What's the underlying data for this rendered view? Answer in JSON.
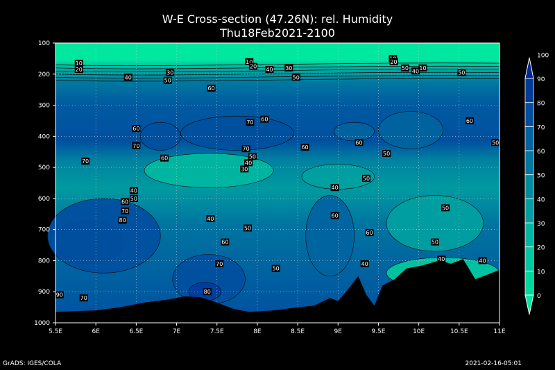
{
  "title_line1": "W-E Cross-section (47.26N): rel. Humidity",
  "title_line2": "Thu18Feb2021-2100",
  "footer_left": "GrADS: IGES/COLA",
  "footer_right": "2021-02-16-05:01",
  "chart_data": {
    "type": "heatmap",
    "title": "W-E Cross-section (47.26N): rel. Humidity",
    "subtitle": "Thu18Feb2021-2100",
    "x_ticks": [
      "5.5E",
      "6E",
      "6.5E",
      "7E",
      "7.5E",
      "8E",
      "8.5E",
      "9E",
      "9.5E",
      "10E",
      "10.5E",
      "11E"
    ],
    "x_values": [
      5.5,
      6,
      6.5,
      7,
      7.5,
      8,
      8.5,
      9,
      9.5,
      10,
      10.5,
      11
    ],
    "y_ticks": [
      "100",
      "200",
      "300",
      "400",
      "500",
      "600",
      "700",
      "800",
      "900",
      "1000"
    ],
    "y_values": [
      100,
      200,
      300,
      400,
      500,
      600,
      700,
      800,
      900,
      1000
    ],
    "xlim": [
      5.5,
      11
    ],
    "ylim": [
      1000,
      100
    ],
    "colorbar": {
      "levels": [
        0,
        10,
        20,
        30,
        40,
        50,
        60,
        70,
        80,
        90,
        100
      ],
      "labels": [
        "0",
        "10",
        "20",
        "30",
        "40",
        "50",
        "60",
        "70",
        "80",
        "90",
        "100"
      ],
      "colors": [
        "#00e8a0",
        "#00d8a0",
        "#00c8a0",
        "#00b8a0",
        "#00a0a0",
        "#008ca0",
        "#0078a0",
        "#0064a0",
        "#0050a0",
        "#003c9c",
        "#002890"
      ]
    },
    "contour_labels": [
      {
        "lon": 5.79,
        "p": 165,
        "v": "10"
      },
      {
        "lon": 5.79,
        "p": 185,
        "v": "20"
      },
      {
        "lon": 6.4,
        "p": 210,
        "v": "40"
      },
      {
        "lon": 6.92,
        "p": 195,
        "v": "30"
      },
      {
        "lon": 6.89,
        "p": 220,
        "v": "50"
      },
      {
        "lon": 7.43,
        "p": 245,
        "v": "60"
      },
      {
        "lon": 7.9,
        "p": 160,
        "v": "10"
      },
      {
        "lon": 7.95,
        "p": 175,
        "v": "20"
      },
      {
        "lon": 8.15,
        "p": 185,
        "v": "40"
      },
      {
        "lon": 8.39,
        "p": 180,
        "v": "30"
      },
      {
        "lon": 8.48,
        "p": 210,
        "v": "50"
      },
      {
        "lon": 9.68,
        "p": 150,
        "v": "10"
      },
      {
        "lon": 9.69,
        "p": 160,
        "v": "20"
      },
      {
        "lon": 9.83,
        "p": 180,
        "v": "50"
      },
      {
        "lon": 9.96,
        "p": 190,
        "v": "40"
      },
      {
        "lon": 10.05,
        "p": 180,
        "v": "10"
      },
      {
        "lon": 10.53,
        "p": 195,
        "v": "50"
      },
      {
        "lon": 6.5,
        "p": 375,
        "v": "60"
      },
      {
        "lon": 7.91,
        "p": 355,
        "v": "70"
      },
      {
        "lon": 8.09,
        "p": 345,
        "v": "60"
      },
      {
        "lon": 6.5,
        "p": 430,
        "v": "70"
      },
      {
        "lon": 6.85,
        "p": 470,
        "v": "60"
      },
      {
        "lon": 5.87,
        "p": 480,
        "v": "70"
      },
      {
        "lon": 7.86,
        "p": 440,
        "v": "70"
      },
      {
        "lon": 7.94,
        "p": 465,
        "v": "50"
      },
      {
        "lon": 7.89,
        "p": 485,
        "v": "40"
      },
      {
        "lon": 7.84,
        "p": 505,
        "v": "30"
      },
      {
        "lon": 8.59,
        "p": 435,
        "v": "60"
      },
      {
        "lon": 9.26,
        "p": 420,
        "v": "60"
      },
      {
        "lon": 9.6,
        "p": 455,
        "v": "50"
      },
      {
        "lon": 10.63,
        "p": 350,
        "v": "60"
      },
      {
        "lon": 10.95,
        "p": 420,
        "v": "50"
      },
      {
        "lon": 6.47,
        "p": 575,
        "v": "40"
      },
      {
        "lon": 6.47,
        "p": 600,
        "v": "50"
      },
      {
        "lon": 6.36,
        "p": 610,
        "v": "60"
      },
      {
        "lon": 6.36,
        "p": 640,
        "v": "70"
      },
      {
        "lon": 6.33,
        "p": 670,
        "v": "80"
      },
      {
        "lon": 7.42,
        "p": 665,
        "v": "40"
      },
      {
        "lon": 7.6,
        "p": 740,
        "v": "60"
      },
      {
        "lon": 7.88,
        "p": 695,
        "v": "50"
      },
      {
        "lon": 8.96,
        "p": 565,
        "v": "40"
      },
      {
        "lon": 9.35,
        "p": 535,
        "v": "50"
      },
      {
        "lon": 8.96,
        "p": 655,
        "v": "60"
      },
      {
        "lon": 9.39,
        "p": 710,
        "v": "60"
      },
      {
        "lon": 10.33,
        "p": 630,
        "v": "50"
      },
      {
        "lon": 10.2,
        "p": 740,
        "v": "50"
      },
      {
        "lon": 9.33,
        "p": 810,
        "v": "40"
      },
      {
        "lon": 10.28,
        "p": 795,
        "v": "40"
      },
      {
        "lon": 10.79,
        "p": 800,
        "v": "40"
      },
      {
        "lon": 8.23,
        "p": 825,
        "v": "50"
      },
      {
        "lon": 7.53,
        "p": 810,
        "v": "70"
      },
      {
        "lon": 7.38,
        "p": 900,
        "v": "80"
      },
      {
        "lon": 5.55,
        "p": 910,
        "v": "90"
      },
      {
        "lon": 5.85,
        "p": 920,
        "v": "70"
      }
    ]
  }
}
